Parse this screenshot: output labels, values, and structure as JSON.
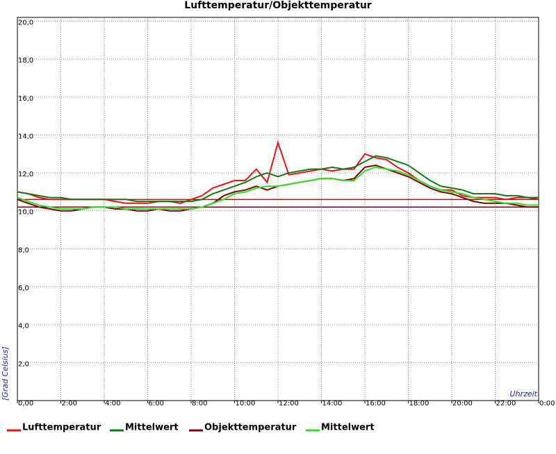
{
  "chart_data": {
    "type": "line",
    "title": "Lufttemperatur/Objekttemperatur",
    "xlabel": "Uhrzeit",
    "ylabel": "[Grad Celsius]",
    "x": [
      0,
      0.5,
      1,
      1.5,
      2,
      2.5,
      3,
      3.5,
      4,
      4.5,
      5,
      5.5,
      6,
      6.5,
      7,
      7.5,
      8,
      8.5,
      9,
      9.5,
      10,
      10.5,
      11,
      11.5,
      12,
      12.5,
      13,
      13.5,
      14,
      14.5,
      15,
      15.5,
      16,
      16.5,
      17,
      17.5,
      18,
      18.5,
      19,
      19.5,
      20,
      20.5,
      21,
      21.5,
      22,
      22.5,
      23,
      23.5,
      24
    ],
    "series": [
      {
        "name": "Lufttemperatur",
        "color": "#ee1111",
        "values": [
          11.0,
          10.9,
          10.7,
          10.6,
          10.6,
          10.6,
          10.6,
          10.6,
          10.6,
          10.5,
          10.4,
          10.4,
          10.4,
          10.5,
          10.5,
          10.4,
          10.6,
          10.8,
          11.2,
          11.4,
          11.6,
          11.6,
          12.2,
          11.5,
          13.6,
          11.9,
          12.0,
          12.1,
          12.2,
          12.1,
          12.2,
          12.2,
          13.0,
          12.8,
          12.7,
          12.3,
          12.0,
          11.6,
          11.3,
          11.1,
          11.1,
          10.8,
          10.7,
          10.7,
          10.7,
          10.6,
          10.7,
          10.7,
          10.6
        ]
      },
      {
        "name": "Mittelwert",
        "color": "#117711",
        "values": [
          11.0,
          10.9,
          10.8,
          10.7,
          10.7,
          10.6,
          10.6,
          10.6,
          10.6,
          10.6,
          10.6,
          10.5,
          10.5,
          10.5,
          10.5,
          10.5,
          10.5,
          10.6,
          10.9,
          11.1,
          11.3,
          11.5,
          11.8,
          12.0,
          11.8,
          12.0,
          12.1,
          12.2,
          12.2,
          12.3,
          12.2,
          12.3,
          12.6,
          12.9,
          12.8,
          12.6,
          12.4,
          12.0,
          11.6,
          11.3,
          11.2,
          11.1,
          10.9,
          10.9,
          10.9,
          10.8,
          10.8,
          10.7,
          10.7
        ]
      },
      {
        "name": "Objekttemperatur",
        "color": "#7a0000",
        "values": [
          10.6,
          10.4,
          10.2,
          10.1,
          10.0,
          10.0,
          10.1,
          10.2,
          10.2,
          10.1,
          10.1,
          10.0,
          10.0,
          10.1,
          10.0,
          10.0,
          10.1,
          10.2,
          10.4,
          10.8,
          11.0,
          11.1,
          11.3,
          11.1,
          11.3,
          11.4,
          11.5,
          11.6,
          11.7,
          11.7,
          11.6,
          11.7,
          12.3,
          12.4,
          12.2,
          12.0,
          11.8,
          11.5,
          11.2,
          11.0,
          10.9,
          10.7,
          10.5,
          10.4,
          10.4,
          10.4,
          10.3,
          10.2,
          10.2
        ]
      },
      {
        "name": "Mittelwert",
        "color": "#33dd22",
        "values": [
          10.7,
          10.5,
          10.3,
          10.2,
          10.1,
          10.1,
          10.1,
          10.2,
          10.2,
          10.2,
          10.1,
          10.1,
          10.1,
          10.1,
          10.1,
          10.1,
          10.1,
          10.2,
          10.4,
          10.6,
          10.9,
          11.0,
          11.2,
          11.3,
          11.3,
          11.4,
          11.5,
          11.6,
          11.7,
          11.7,
          11.6,
          11.6,
          12.1,
          12.3,
          12.2,
          12.1,
          11.9,
          11.6,
          11.3,
          11.1,
          11.0,
          10.9,
          10.7,
          10.6,
          10.5,
          10.4,
          10.4,
          10.3,
          10.3
        ]
      }
    ],
    "reference_lines": [
      {
        "value": 10.6,
        "color": "#cc0000"
      },
      {
        "value": 10.2,
        "color": "#800000"
      }
    ],
    "xlim": [
      0,
      24
    ],
    "xticks": [
      {
        "value": 0,
        "label": "0,00"
      },
      {
        "value": 2,
        "label": "2:00"
      },
      {
        "value": 4,
        "label": "4:00"
      },
      {
        "value": 6,
        "label": "6:00"
      },
      {
        "value": 8,
        "label": "8:00"
      },
      {
        "value": 10,
        "label": "10:00"
      },
      {
        "value": 12,
        "label": "12:00"
      },
      {
        "value": 14,
        "label": "14:00"
      },
      {
        "value": 16,
        "label": "16:00"
      },
      {
        "value": 18,
        "label": "18:00"
      },
      {
        "value": 20,
        "label": "20:00"
      },
      {
        "value": 22,
        "label": "22:00"
      },
      {
        "value": 24,
        "label": "0:00"
      }
    ],
    "ylim": [
      0,
      20.2
    ],
    "yticks": [
      {
        "value": 2,
        "label": "2,0"
      },
      {
        "value": 4,
        "label": "4,0"
      },
      {
        "value": 6,
        "label": "6,0"
      },
      {
        "value": 8,
        "label": "8,0"
      },
      {
        "value": 10,
        "label": "10,0"
      },
      {
        "value": 12,
        "label": "12,0"
      },
      {
        "value": 14,
        "label": "14,0"
      },
      {
        "value": 16,
        "label": "16,0"
      },
      {
        "value": 18,
        "label": "18,0"
      },
      {
        "value": 20,
        "label": "20,0"
      }
    ],
    "grid": true
  }
}
